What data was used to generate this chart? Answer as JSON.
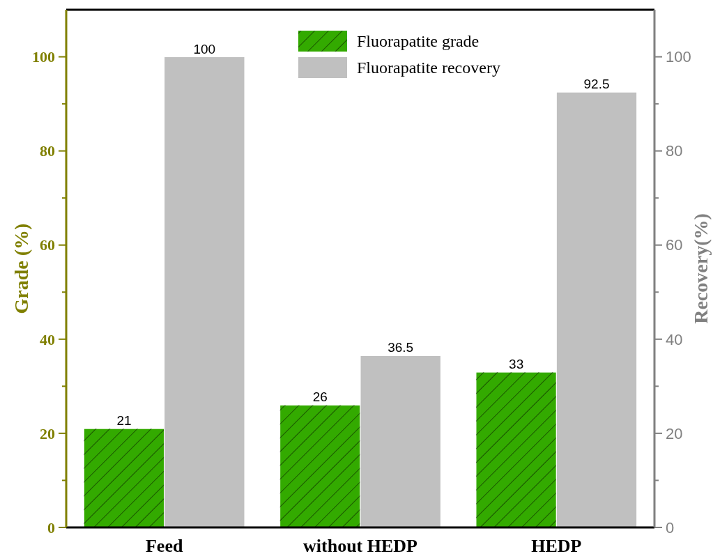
{
  "chart_data": {
    "type": "bar",
    "categories": [
      "Feed",
      "without HEDP",
      "HEDP"
    ],
    "series": [
      {
        "name": "Fluorapatite grade",
        "color": "#33aa00",
        "values": [
          21,
          26,
          33
        ]
      },
      {
        "name": "Fluorapatite recovery",
        "color": "#c0c0c0",
        "values": [
          100,
          36.5,
          92.5
        ],
        "axis": "y2"
      }
    ],
    "ylabel": "Grade (%)",
    "y2label": "Recovery(%)",
    "ylim": [
      0,
      110
    ],
    "yticks": [
      0,
      {
        "value": 10,
        "label": null
      },
      20,
      {
        "value": 30,
        "label": null
      },
      40,
      {
        "value": 50,
        "label": null
      },
      60,
      {
        "value": 70,
        "label": null
      },
      80,
      {
        "value": 90,
        "label": null
      },
      100
    ],
    "y2lim": [
      0,
      110
    ],
    "y2ticks": [
      0,
      {
        "value": 10,
        "label": null
      },
      20,
      {
        "value": 30,
        "label": null
      },
      40,
      {
        "value": 50,
        "label": null
      },
      60,
      {
        "value": 70,
        "label": null
      },
      80,
      {
        "value": 90,
        "label": null
      },
      100
    ],
    "data_labels": true,
    "legend": "top",
    "grid": false
  }
}
